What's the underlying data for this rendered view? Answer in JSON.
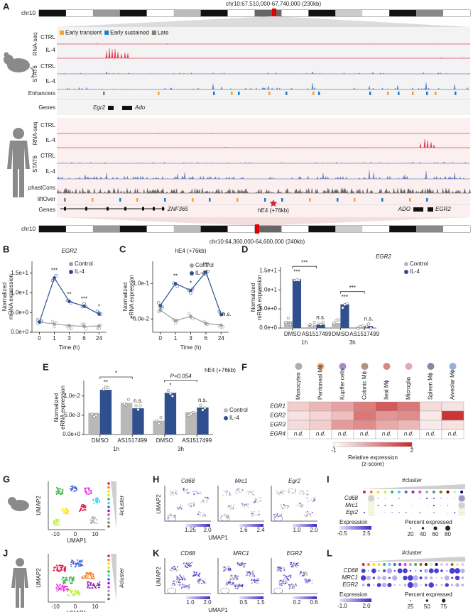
{
  "panel_letters": [
    "A",
    "B",
    "C",
    "D",
    "E",
    "F",
    "G",
    "H",
    "I",
    "J",
    "K",
    "L"
  ],
  "genome": {
    "chrom": "chr10",
    "top_locus": "chr10:67,510,000-67,740,000 (230kb)",
    "bottom_locus": "chr10:64,360,000-64,600,000 (240kb)",
    "legend": [
      {
        "name": "Early transient",
        "color": "#f2a23a"
      },
      {
        "name": "Early sustained",
        "color": "#1f7ec1"
      },
      {
        "name": "Late",
        "color": "#8a7a68"
      }
    ],
    "rna_label": "RNA-seq",
    "stat6_label": "STAT6",
    "mouse_tracks": [
      "CTRL",
      "IL-4",
      "CTRL",
      "IL-4",
      "Enhancers",
      "Genes"
    ],
    "mouse_genes": [
      "Egr2",
      "Ado"
    ],
    "human_tracks": [
      "CTRL",
      "IL-4",
      "CTRL",
      "IL-4",
      "phastCons",
      "liftOver",
      "Genes"
    ],
    "human_genes": [
      "ZNF365",
      "ADO",
      "EGR2"
    ],
    "enhancer": "hE4 (+76kb)"
  },
  "chart_data": [
    {
      "type": "line",
      "title": "EGR2",
      "ylabel": [
        "Normalized",
        "mRNA expression"
      ],
      "xlabel": "Time (h)",
      "categories": [
        "0",
        "1",
        "3",
        "6",
        "24"
      ],
      "series": [
        {
          "name": "Control",
          "color": "#9e9e9e",
          "values": [
            2.6,
            2.1,
            1.7,
            1.5,
            1.6
          ]
        },
        {
          "name": "IL-4",
          "color": "#2f4f8f",
          "values": [
            2.6,
            13.8,
            7.8,
            6.6,
            4.6
          ]
        }
      ],
      "sig_labels": [
        null,
        "***",
        "**",
        "***",
        "*"
      ],
      "ylim": [
        0,
        18
      ],
      "yticks": [
        {
          "value": 0,
          "label": "0.0e+0"
        },
        {
          "value": 5,
          "label": "5.0e+0"
        },
        {
          "value": 10,
          "label": "1.0e+1"
        },
        {
          "value": 15,
          "label": "1.5e+1"
        }
      ]
    },
    {
      "type": "line",
      "title": "hE4 (+76kb)",
      "ylabel": [
        "Normalized",
        "eRNA expression"
      ],
      "xlabel": "Time (h)",
      "categories": [
        "0",
        "1",
        "3",
        "6",
        "24"
      ],
      "series": [
        {
          "name": "Control",
          "color": "#9e9e9e",
          "values": [
            0.07,
            0.058,
            0.063,
            0.055,
            0.053
          ]
        },
        {
          "name": "IL-4",
          "color": "#2f4f8f",
          "values": [
            0.075,
            0.1,
            0.092,
            0.113,
            0.065
          ]
        }
      ],
      "sig_labels": [
        null,
        "**",
        "*",
        "***",
        "n.s."
      ],
      "ylim": [
        0.045,
        0.125
      ],
      "yticks": [
        {
          "value": 0.06,
          "label": "6.0e-2"
        },
        {
          "value": 0.1,
          "label": "1.0e-1"
        }
      ]
    },
    {
      "type": "bar",
      "title": "EGR2",
      "ylabel": [
        "Normalized",
        "mRNA expression"
      ],
      "categories": [
        "DMSO",
        "AS1517499",
        "DMSO",
        "AS1517499"
      ],
      "groups": [
        "1h",
        "3h"
      ],
      "series": [
        {
          "name": "Control",
          "color": "#b8b8b8",
          "values": [
            1.8,
            0.8,
            1.3,
            0.4
          ]
        },
        {
          "name": "IL-4",
          "color": "#2f4f8f",
          "values": [
            12.8,
            0.9,
            6.2,
            0.5
          ]
        }
      ],
      "sig_labels": [
        "***",
        "n.s.",
        "***",
        "n.s."
      ],
      "bracket_labels": [
        "***",
        "***"
      ],
      "ylim": [
        0,
        16
      ],
      "yticks": [
        {
          "value": 0,
          "label": "0.0e+0"
        },
        {
          "value": 5,
          "label": "5.0e+0"
        },
        {
          "value": 10,
          "label": "1.0e+1"
        },
        {
          "value": 15,
          "label": "1.5e+1"
        }
      ]
    },
    {
      "type": "bar",
      "title": "hE4 (+76kb)",
      "ylabel": [
        "Normalized",
        "eRNA expression"
      ],
      "categories": [
        "DMSO",
        "AS1517499",
        "DMSO",
        "AS1517499"
      ],
      "groups": [
        "1h",
        "3h"
      ],
      "series": [
        {
          "name": "Control",
          "color": "#b8b8b8",
          "values": [
            0.0056,
            0.0082,
            0.0036,
            0.0058
          ]
        },
        {
          "name": "IL-4",
          "color": "#2f4f8f",
          "values": [
            0.0116,
            0.0068,
            0.0108,
            0.007
          ]
        }
      ],
      "sig_labels": [
        "**",
        "n.s.",
        "*",
        "n.s."
      ],
      "bracket_labels": [
        "*",
        "P=0.054"
      ],
      "ylim": [
        0,
        0.014
      ],
      "yticks": [
        {
          "value": 0,
          "label": "0.0e+0"
        },
        {
          "value": 0.005,
          "label": "5.0e-3"
        },
        {
          "value": 0.01,
          "label": "1.0e-2"
        }
      ]
    },
    {
      "type": "heatmap",
      "columns": [
        "Monocytes",
        "Peritoneal Mϕ",
        "Kupffer cells",
        "Colonic Mϕ",
        "Ileal Mϕ",
        "Microglia",
        "Spleen Mϕ",
        "Alveolar Mϕ"
      ],
      "column_colors": [
        "#777777",
        "#e07b2a",
        "#6b3fa0",
        "#7a4a2a",
        "#c0392b",
        "#d46a8c",
        "#2c3e70",
        "#4a7fc1"
      ],
      "rows": [
        "EGR1",
        "EGR2",
        "EGR3",
        "EGR4"
      ],
      "values": [
        [
          -0.3,
          0.0,
          0.3,
          0.8,
          1.3,
          0.9,
          -0.5,
          -0.6
        ],
        [
          -0.6,
          -0.4,
          -0.1,
          0.9,
          0.5,
          0.6,
          -0.7,
          1.8
        ],
        [
          -0.5,
          -0.3,
          0.4,
          0.6,
          0.2,
          0.0,
          -0.7,
          -0.6
        ],
        [
          null,
          null,
          null,
          null,
          null,
          null,
          null,
          null
        ]
      ],
      "nd_label": "n.d.",
      "colorbar_title": [
        "Relative expression",
        "(z-score)"
      ],
      "clim": [
        -1,
        2
      ],
      "cticks": [
        -1,
        2
      ],
      "colors": [
        "#ffffff",
        "#c62828"
      ]
    }
  ],
  "umap": {
    "axis_x": "UMAP1",
    "axis_y": "UMAP2",
    "cluster_label": "#cluster",
    "xticks": [
      "-10",
      "0",
      "10"
    ],
    "mouse": {
      "genes": [
        "Cd68",
        "Mrc1",
        "Egr2"
      ],
      "gene_ticks": [
        [
          "1.25",
          "2.0"
        ],
        [
          "1.6",
          "2.4"
        ],
        [
          "1.0",
          "2.0"
        ]
      ],
      "expression_title": "Expression",
      "expression_ticks": [
        "-0.5",
        "2.5"
      ],
      "percent_title": "Percent expressed",
      "percent_ticks": [
        "20",
        "40",
        "60",
        "80"
      ]
    },
    "human": {
      "genes": [
        "CD68",
        "MRC1",
        "EGR2"
      ],
      "gene_ticks": [
        [
          "1.0",
          "2.0"
        ],
        [
          "0.5",
          "1.5"
        ],
        [
          "0.2",
          "0.6"
        ]
      ],
      "expression_title": "Expression",
      "expression_ticks": [
        "-1.0",
        "2.0"
      ],
      "percent_title": "Percent expressed",
      "percent_ticks": [
        "25",
        "50",
        "75"
      ]
    }
  }
}
